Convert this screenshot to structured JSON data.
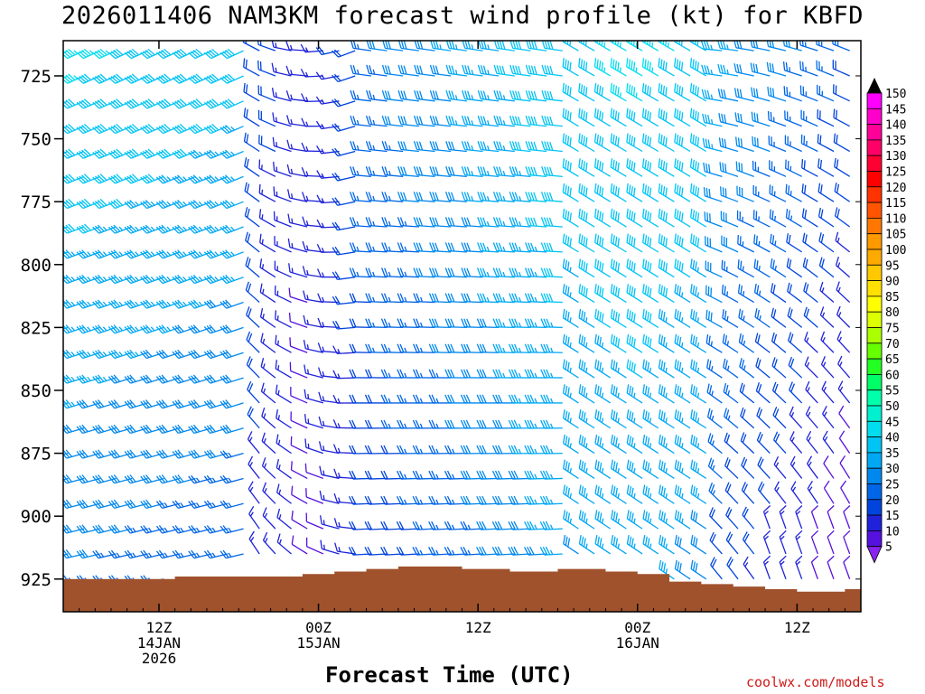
{
  "chart_data": {
    "type": "wind-profile-time-height",
    "title": "2026011406 NAM3KM forecast wind profile (kt) for KBFD",
    "xlabel": "Forecast Time (UTC)",
    "credit": "coolwx.com/models",
    "y_ticks": [
      "725",
      "750",
      "775",
      "800",
      "825",
      "850",
      "875",
      "900",
      "925"
    ],
    "y_values": [
      725,
      750,
      775,
      800,
      825,
      850,
      875,
      900,
      925
    ],
    "y_range_hPa": [
      938,
      711
    ],
    "x_range_hours": [
      6,
      56
    ],
    "x_ticks": [
      {
        "hour": 12,
        "lines": [
          "12Z",
          "14JAN",
          "2026"
        ]
      },
      {
        "hour": 22,
        "lines": [
          "00Z",
          "15JAN"
        ]
      },
      {
        "hour": 32,
        "lines": [
          "12Z"
        ]
      },
      {
        "hour": 42,
        "lines": [
          "00Z",
          "16JAN"
        ]
      },
      {
        "hour": 52,
        "lines": [
          "12Z"
        ]
      }
    ],
    "colorbar_labels": [
      "150",
      "145",
      "140",
      "135",
      "130",
      "125",
      "120",
      "115",
      "110",
      "105",
      "100",
      "95",
      "90",
      "85",
      "80",
      "75",
      "70",
      "65",
      "60",
      "55",
      "50",
      "45",
      "40",
      "35",
      "30",
      "25",
      "20",
      "15",
      "10",
      "5"
    ],
    "colorbar_colors": [
      "#ff00ff",
      "#ff00cc",
      "#ff0099",
      "#ff0066",
      "#ff0033",
      "#ff0000",
      "#ff3300",
      "#ff5500",
      "#ff7700",
      "#ff9900",
      "#ffaa00",
      "#ffc800",
      "#ffe000",
      "#ffff00",
      "#ddff00",
      "#aaff00",
      "#66ff00",
      "#22ff22",
      "#00ff66",
      "#00ffaa",
      "#00f0d0",
      "#00ddee",
      "#00c4f4",
      "#00a8f4",
      "#0088ee",
      "#0066e8",
      "#0044dd",
      "#1f22d8",
      "#5511dd",
      "#8822ee"
    ],
    "wind_levels_hPa": [
      715,
      725,
      735,
      745,
      755,
      765,
      775,
      785,
      795,
      805,
      815,
      825,
      835,
      845,
      855,
      865,
      875,
      885,
      895,
      905,
      915,
      925
    ],
    "terrain_hPa": [
      [
        6,
        925
      ],
      [
        10,
        925
      ],
      [
        13,
        924
      ],
      [
        16,
        924
      ],
      [
        19,
        924
      ],
      [
        21,
        923
      ],
      [
        23,
        922
      ],
      [
        25,
        921
      ],
      [
        27,
        920
      ],
      [
        29,
        920
      ],
      [
        31,
        921
      ],
      [
        34,
        922
      ],
      [
        37,
        921
      ],
      [
        40,
        922
      ],
      [
        42,
        923
      ],
      [
        44,
        926
      ],
      [
        46,
        927
      ],
      [
        48,
        928
      ],
      [
        50,
        929
      ],
      [
        52,
        930
      ],
      [
        54,
        930
      ],
      [
        55,
        929
      ],
      [
        56,
        928
      ]
    ],
    "terrain_color": "#a0522d",
    "barb_model": "speed(kt) and direction vary smoothly over time and height; stronger SW/W flow aloft, weaker variable winds near 00Z 15JAN"
  }
}
